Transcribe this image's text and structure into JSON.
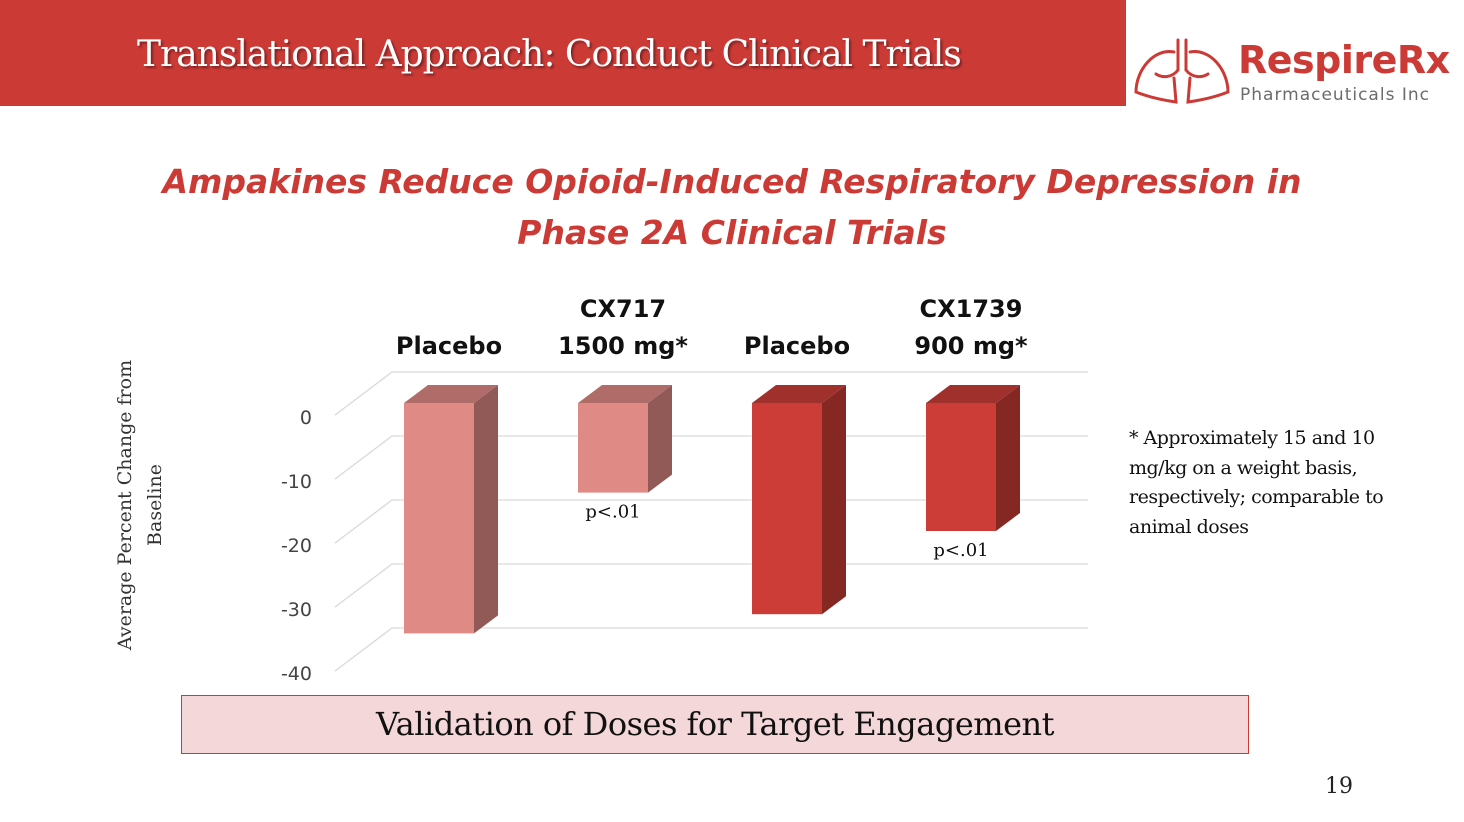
{
  "header": {
    "title": "Translational Approach: Conduct Clinical Trials"
  },
  "logo": {
    "name": "RespireRx",
    "subtitle": "Pharmaceuticals Inc"
  },
  "subtitle": {
    "line1": "Ampakines Reduce Opioid-Induced Respiratory Depression in",
    "line2": "Phase 2A Clinical Trials"
  },
  "chart_data": {
    "type": "bar",
    "categories": [
      "Placebo",
      "CX717 1500 mg*",
      "Placebo",
      "CX1739 900 mg*"
    ],
    "category_lines": [
      [
        "Placebo"
      ],
      [
        "CX717",
        "1500 mg*"
      ],
      [
        "Placebo"
      ],
      [
        "CX1739",
        "900 mg*"
      ]
    ],
    "values": [
      -36,
      -14,
      -33,
      -20
    ],
    "annotations": [
      "",
      "p<.01",
      "",
      "p<.01"
    ],
    "colors": [
      "#e08a86",
      "#e08a86",
      "#cc3d38",
      "#cc3d38"
    ],
    "ylabel": "Average Percent Change from Baseline",
    "ylim": [
      -40,
      0
    ],
    "yticks": [
      0,
      -10,
      -20,
      -30,
      -40
    ],
    "grid": true,
    "style": "3d-column"
  },
  "footnote": "* Approximately 15 and 10 mg/kg on a weight basis, respectively; comparable to animal doses",
  "callout": "Validation of Doses for Target Engagement",
  "page_number": "19"
}
